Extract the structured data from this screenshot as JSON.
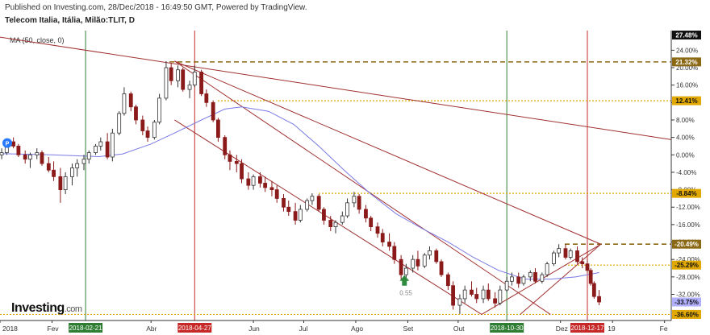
{
  "header": {
    "published_line": "Published on Investing.com, 28/Dec/2018 - 16:49:50 GMT, Powered by TradingView.",
    "instrument": "Telecom Italia, Itália, Milão:TLIT, D"
  },
  "indicator": {
    "label": "MA (50, close, 0)"
  },
  "logo": {
    "text": "Investing",
    "suffix": ".com"
  },
  "colors": {
    "candle_up": "#333333",
    "candle_down": "#8b1a1a",
    "ma": "#7a7ae6",
    "channel": "#a03030",
    "level_gold": "#b8860b",
    "level_dark": "#8b6914",
    "vline_green": "#2e7d32",
    "vline_red": "#c62828",
    "grid_axis": "#333333"
  },
  "chart_data": {
    "type": "candlestick",
    "xlabel": "",
    "ylabel": "",
    "y_axis": {
      "unit": "%",
      "range": [
        -38.0,
        28.5
      ],
      "ticks": [
        "24.00%",
        "20.00%",
        "16.00%",
        "12.00%",
        "8.00%",
        "4.00%",
        "0.00%",
        "-4.00%",
        "-8.00%",
        "-12.00%",
        "-16.00%",
        "-20.00%",
        "-24.00%",
        "-28.00%",
        "-32.00%"
      ],
      "tick_values": [
        24,
        20,
        16,
        12,
        8,
        4,
        0,
        -4,
        -8,
        -12,
        -16,
        -20,
        -24,
        -28,
        -32
      ]
    },
    "x_axis": {
      "range": [
        "2018-01-01",
        "2019-02-05"
      ],
      "labels": [
        {
          "label": "2018",
          "date": "2018-01-01"
        },
        {
          "label": "Fev",
          "date": "2018-02-01"
        },
        {
          "label": "Abr",
          "date": "2018-04-01"
        },
        {
          "label": "Jun",
          "date": "2018-06-01"
        },
        {
          "label": "Jul",
          "date": "2018-07-01"
        },
        {
          "label": "Ago",
          "date": "2018-08-01"
        },
        {
          "label": "Set",
          "date": "2018-09-01"
        },
        {
          "label": "Out",
          "date": "2018-10-01"
        },
        {
          "label": "Dez",
          "date": "2018-12-01"
        },
        {
          "label": "19",
          "date": "2019-01-01"
        },
        {
          "label": "Fe",
          "date": "2019-02-01"
        }
      ]
    },
    "levels": [
      {
        "label": "27.48%",
        "value": 27.48,
        "style": "none",
        "badge": "#111111"
      },
      {
        "label": "21.32%",
        "value": 21.32,
        "style": "dashed",
        "color": "#8b6914",
        "badge": "#8b6914"
      },
      {
        "label": "12.41%",
        "value": 12.41,
        "style": "dotted",
        "color": "#e0a800",
        "badge": "#e0a800"
      },
      {
        "label": "-8.84%",
        "value": -8.84,
        "style": "dotted",
        "color": "#e0a800",
        "badge": "#e0a800"
      },
      {
        "label": "-20.49%",
        "value": -20.49,
        "style": "dashed",
        "color": "#8b6914",
        "badge": "#8b6914"
      },
      {
        "label": "-25.29%",
        "value": -25.29,
        "style": "dotted",
        "color": "#e0a800",
        "badge": "#e0a800"
      },
      {
        "label": "-33.75%",
        "value": -33.75,
        "style": "none",
        "badge": "#b0b0ff"
      },
      {
        "label": "-36.60%",
        "value": -36.6,
        "style": "dotted",
        "color": "#e0a800",
        "badge": "#e0a800"
      }
    ],
    "vertical_markers": [
      {
        "label": "2018-02-21",
        "date": "2018-02-21",
        "color": "#2e7d32"
      },
      {
        "label": "2018-04-27",
        "date": "2018-04-27",
        "color": "#c62828"
      },
      {
        "label": "2018-10-30",
        "date": "2018-10-30",
        "color": "#2e7d32"
      },
      {
        "label": "2018-12-17",
        "date": "2018-12-17",
        "color": "#c62828"
      }
    ],
    "annotations": [
      {
        "label": "0.55",
        "date": "2018-08-30",
        "value": -30.0
      }
    ],
    "trendlines": [
      {
        "from": [
          "2018-01-01",
          27.0
        ],
        "to": [
          "2019-02-05",
          3.5
        ]
      },
      {
        "from": [
          "2018-04-15",
          21.5
        ],
        "to": [
          "2018-12-25",
          -20.5
        ]
      },
      {
        "from": [
          "2018-04-15",
          21.5
        ],
        "to": [
          "2018-11-25",
          -36.6
        ]
      },
      {
        "from": [
          "2018-04-15",
          8.0
        ],
        "to": [
          "2018-10-15",
          -36.6
        ]
      },
      {
        "from": [
          "2018-10-15",
          -36.6
        ],
        "to": [
          "2018-12-25",
          -20.5
        ]
      },
      {
        "from": [
          "2018-11-07",
          -36.6
        ],
        "to": [
          "2018-12-25",
          -20.5
        ]
      }
    ],
    "candles": [
      {
        "date": "2018-01-02",
        "o": 0.0,
        "h": 1.5,
        "l": -1.0,
        "c": 0.5
      },
      {
        "date": "2018-01-05",
        "o": 0.5,
        "h": 3.5,
        "l": 0.0,
        "c": 3.0
      },
      {
        "date": "2018-01-09",
        "o": 3.0,
        "h": 4.0,
        "l": 1.5,
        "c": 2.0
      },
      {
        "date": "2018-01-12",
        "o": 2.0,
        "h": 2.5,
        "l": -0.5,
        "c": 0.0
      },
      {
        "date": "2018-01-16",
        "o": 0.0,
        "h": 1.0,
        "l": -2.0,
        "c": -1.0
      },
      {
        "date": "2018-01-19",
        "o": -1.0,
        "h": 0.5,
        "l": -3.0,
        "c": 0.0
      },
      {
        "date": "2018-01-23",
        "o": 0.0,
        "h": 1.5,
        "l": -1.0,
        "c": 0.5
      },
      {
        "date": "2018-01-26",
        "o": 0.5,
        "h": 1.0,
        "l": -2.5,
        "c": -2.0
      },
      {
        "date": "2018-01-30",
        "o": -2.0,
        "h": -0.5,
        "l": -4.0,
        "c": -3.5
      },
      {
        "date": "2018-02-02",
        "o": -3.5,
        "h": -1.5,
        "l": -6.0,
        "c": -5.0
      },
      {
        "date": "2018-02-06",
        "o": -5.0,
        "h": -3.0,
        "l": -11.0,
        "c": -8.0
      },
      {
        "date": "2018-02-09",
        "o": -8.0,
        "h": -4.0,
        "l": -9.0,
        "c": -5.0
      },
      {
        "date": "2018-02-13",
        "o": -5.0,
        "h": -2.0,
        "l": -7.0,
        "c": -3.0
      },
      {
        "date": "2018-02-16",
        "o": -3.0,
        "h": -1.0,
        "l": -5.0,
        "c": -2.0
      },
      {
        "date": "2018-02-20",
        "o": -2.0,
        "h": 0.0,
        "l": -3.5,
        "c": -1.0
      },
      {
        "date": "2018-02-23",
        "o": -1.0,
        "h": 1.0,
        "l": -2.0,
        "c": 0.5
      },
      {
        "date": "2018-02-27",
        "o": 0.5,
        "h": 2.5,
        "l": 0.0,
        "c": 2.0
      },
      {
        "date": "2018-03-02",
        "o": 2.0,
        "h": 4.0,
        "l": 1.0,
        "c": 3.0
      },
      {
        "date": "2018-03-06",
        "o": 3.0,
        "h": 5.0,
        "l": -1.0,
        "c": -0.5
      },
      {
        "date": "2018-03-09",
        "o": -0.5,
        "h": 6.0,
        "l": -1.5,
        "c": 5.0
      },
      {
        "date": "2018-03-13",
        "o": 5.0,
        "h": 10.0,
        "l": 4.5,
        "c": 9.5
      },
      {
        "date": "2018-03-16",
        "o": 9.5,
        "h": 15.5,
        "l": 9.0,
        "c": 14.0
      },
      {
        "date": "2018-03-20",
        "o": 14.0,
        "h": 14.5,
        "l": 10.0,
        "c": 11.0
      },
      {
        "date": "2018-03-23",
        "o": 11.0,
        "h": 11.5,
        "l": 7.0,
        "c": 8.0
      },
      {
        "date": "2018-03-27",
        "o": 8.0,
        "h": 9.0,
        "l": 4.5,
        "c": 5.5
      },
      {
        "date": "2018-03-30",
        "o": 5.5,
        "h": 6.5,
        "l": 3.0,
        "c": 4.0
      },
      {
        "date": "2018-04-03",
        "o": 4.0,
        "h": 8.0,
        "l": 3.5,
        "c": 7.5
      },
      {
        "date": "2018-04-06",
        "o": 7.5,
        "h": 14.0,
        "l": 7.0,
        "c": 13.0
      },
      {
        "date": "2018-04-10",
        "o": 13.0,
        "h": 21.5,
        "l": 12.5,
        "c": 20.0
      },
      {
        "date": "2018-04-13",
        "o": 20.0,
        "h": 21.0,
        "l": 16.0,
        "c": 17.0
      },
      {
        "date": "2018-04-17",
        "o": 17.0,
        "h": 20.5,
        "l": 15.5,
        "c": 19.5
      },
      {
        "date": "2018-04-20",
        "o": 19.5,
        "h": 20.0,
        "l": 14.5,
        "c": 15.0
      },
      {
        "date": "2018-04-24",
        "o": 15.0,
        "h": 17.0,
        "l": 13.0,
        "c": 16.0
      },
      {
        "date": "2018-04-27",
        "o": 16.0,
        "h": 20.5,
        "l": 15.5,
        "c": 19.0
      },
      {
        "date": "2018-05-01",
        "o": 19.0,
        "h": 19.5,
        "l": 13.5,
        "c": 14.0
      },
      {
        "date": "2018-05-04",
        "o": 14.0,
        "h": 15.0,
        "l": 11.0,
        "c": 12.0
      },
      {
        "date": "2018-05-08",
        "o": 12.0,
        "h": 12.5,
        "l": 7.5,
        "c": 8.0
      },
      {
        "date": "2018-05-11",
        "o": 8.0,
        "h": 8.5,
        "l": 3.0,
        "c": 4.0
      },
      {
        "date": "2018-05-15",
        "o": 4.0,
        "h": 4.5,
        "l": -1.0,
        "c": 0.0
      },
      {
        "date": "2018-05-18",
        "o": 0.0,
        "h": 1.0,
        "l": -3.5,
        "c": -1.5
      },
      {
        "date": "2018-05-22",
        "o": -1.5,
        "h": 0.0,
        "l": -4.0,
        "c": -2.0
      },
      {
        "date": "2018-05-25",
        "o": -2.0,
        "h": -1.0,
        "l": -6.5,
        "c": -5.5
      },
      {
        "date": "2018-05-29",
        "o": -5.5,
        "h": -4.0,
        "l": -8.0,
        "c": -7.0
      },
      {
        "date": "2018-06-01",
        "o": -7.0,
        "h": -4.5,
        "l": -8.0,
        "c": -5.0
      },
      {
        "date": "2018-06-05",
        "o": -5.0,
        "h": -4.0,
        "l": -7.5,
        "c": -6.5
      },
      {
        "date": "2018-06-08",
        "o": -6.5,
        "h": -5.0,
        "l": -8.5,
        "c": -7.5
      },
      {
        "date": "2018-06-12",
        "o": -7.5,
        "h": -6.0,
        "l": -9.5,
        "c": -8.0
      },
      {
        "date": "2018-06-15",
        "o": -8.0,
        "h": -7.0,
        "l": -11.0,
        "c": -10.0
      },
      {
        "date": "2018-06-19",
        "o": -10.0,
        "h": -9.0,
        "l": -13.0,
        "c": -12.0
      },
      {
        "date": "2018-06-22",
        "o": -12.0,
        "h": -10.5,
        "l": -14.0,
        "c": -13.0
      },
      {
        "date": "2018-06-26",
        "o": -13.0,
        "h": -11.0,
        "l": -16.0,
        "c": -15.0
      },
      {
        "date": "2018-06-29",
        "o": -15.0,
        "h": -11.5,
        "l": -15.5,
        "c": -12.5
      },
      {
        "date": "2018-07-03",
        "o": -12.5,
        "h": -10.0,
        "l": -13.0,
        "c": -10.5
      },
      {
        "date": "2018-07-06",
        "o": -10.5,
        "h": -8.8,
        "l": -11.5,
        "c": -9.5
      },
      {
        "date": "2018-07-10",
        "o": -9.5,
        "h": -9.0,
        "l": -13.0,
        "c": -12.5
      },
      {
        "date": "2018-07-13",
        "o": -12.5,
        "h": -12.0,
        "l": -16.0,
        "c": -15.0
      },
      {
        "date": "2018-07-17",
        "o": -15.0,
        "h": -14.0,
        "l": -17.5,
        "c": -16.5
      },
      {
        "date": "2018-07-20",
        "o": -16.5,
        "h": -15.0,
        "l": -18.0,
        "c": -15.5
      },
      {
        "date": "2018-07-24",
        "o": -15.5,
        "h": -13.0,
        "l": -16.0,
        "c": -14.0
      },
      {
        "date": "2018-07-27",
        "o": -14.0,
        "h": -10.0,
        "l": -14.5,
        "c": -11.0
      },
      {
        "date": "2018-07-31",
        "o": -11.0,
        "h": -8.5,
        "l": -12.0,
        "c": -9.5
      },
      {
        "date": "2018-08-03",
        "o": -9.5,
        "h": -9.0,
        "l": -13.5,
        "c": -12.5
      },
      {
        "date": "2018-08-07",
        "o": -12.5,
        "h": -11.5,
        "l": -15.5,
        "c": -14.5
      },
      {
        "date": "2018-08-10",
        "o": -14.5,
        "h": -14.0,
        "l": -17.5,
        "c": -16.5
      },
      {
        "date": "2018-08-14",
        "o": -16.5,
        "h": -15.5,
        "l": -19.0,
        "c": -18.0
      },
      {
        "date": "2018-08-17",
        "o": -18.0,
        "h": -17.0,
        "l": -21.0,
        "c": -20.0
      },
      {
        "date": "2018-08-21",
        "o": -20.0,
        "h": -18.0,
        "l": -22.0,
        "c": -21.0
      },
      {
        "date": "2018-08-24",
        "o": -21.0,
        "h": -20.0,
        "l": -25.0,
        "c": -24.0
      },
      {
        "date": "2018-08-28",
        "o": -24.0,
        "h": -23.0,
        "l": -28.5,
        "c": -27.5
      },
      {
        "date": "2018-08-31",
        "o": -27.5,
        "h": -25.0,
        "l": -29.5,
        "c": -26.0
      },
      {
        "date": "2018-09-04",
        "o": -26.0,
        "h": -23.0,
        "l": -27.0,
        "c": -24.0
      },
      {
        "date": "2018-09-07",
        "o": -24.0,
        "h": -22.0,
        "l": -26.5,
        "c": -25.5
      },
      {
        "date": "2018-09-11",
        "o": -25.5,
        "h": -22.5,
        "l": -26.0,
        "c": -23.0
      },
      {
        "date": "2018-09-14",
        "o": -23.0,
        "h": -21.0,
        "l": -24.0,
        "c": -22.0
      },
      {
        "date": "2018-09-18",
        "o": -22.0,
        "h": -21.5,
        "l": -25.0,
        "c": -24.5
      },
      {
        "date": "2018-09-21",
        "o": -24.5,
        "h": -24.0,
        "l": -28.0,
        "c": -27.5
      },
      {
        "date": "2018-09-25",
        "o": -27.5,
        "h": -27.0,
        "l": -31.0,
        "c": -30.0
      },
      {
        "date": "2018-09-28",
        "o": -30.0,
        "h": -29.0,
        "l": -35.5,
        "c": -34.5
      },
      {
        "date": "2018-10-02",
        "o": -34.5,
        "h": -32.0,
        "l": -36.5,
        "c": -33.0
      },
      {
        "date": "2018-10-05",
        "o": -33.0,
        "h": -30.0,
        "l": -34.0,
        "c": -31.0
      },
      {
        "date": "2018-10-09",
        "o": -31.0,
        "h": -29.0,
        "l": -32.5,
        "c": -32.0
      },
      {
        "date": "2018-10-12",
        "o": -32.0,
        "h": -30.5,
        "l": -34.0,
        "c": -33.0
      },
      {
        "date": "2018-10-16",
        "o": -33.0,
        "h": -30.0,
        "l": -34.0,
        "c": -31.0
      },
      {
        "date": "2018-10-19",
        "o": -31.0,
        "h": -29.5,
        "l": -33.5,
        "c": -33.0
      },
      {
        "date": "2018-10-23",
        "o": -33.0,
        "h": -31.5,
        "l": -35.0,
        "c": -34.0
      },
      {
        "date": "2018-10-26",
        "o": -34.0,
        "h": -30.0,
        "l": -34.5,
        "c": -31.0
      },
      {
        "date": "2018-10-30",
        "o": -31.0,
        "h": -28.0,
        "l": -31.5,
        "c": -29.0
      },
      {
        "date": "2018-11-02",
        "o": -29.0,
        "h": -27.0,
        "l": -30.0,
        "c": -28.0
      },
      {
        "date": "2018-11-06",
        "o": -28.0,
        "h": -27.0,
        "l": -30.5,
        "c": -29.5
      },
      {
        "date": "2018-11-09",
        "o": -29.5,
        "h": -27.5,
        "l": -30.0,
        "c": -28.0
      },
      {
        "date": "2018-11-13",
        "o": -28.0,
        "h": -26.5,
        "l": -29.0,
        "c": -27.0
      },
      {
        "date": "2018-11-16",
        "o": -27.0,
        "h": -26.0,
        "l": -29.5,
        "c": -29.0
      },
      {
        "date": "2018-11-20",
        "o": -29.0,
        "h": -27.0,
        "l": -29.5,
        "c": -27.5
      },
      {
        "date": "2018-11-23",
        "o": -27.5,
        "h": -24.5,
        "l": -28.0,
        "c": -25.0
      },
      {
        "date": "2018-11-27",
        "o": -25.0,
        "h": -22.0,
        "l": -25.5,
        "c": -22.5
      },
      {
        "date": "2018-11-30",
        "o": -22.5,
        "h": -20.5,
        "l": -23.5,
        "c": -21.5
      },
      {
        "date": "2018-12-04",
        "o": -21.5,
        "h": -20.5,
        "l": -24.0,
        "c": -23.5
      },
      {
        "date": "2018-12-07",
        "o": -23.5,
        "h": -21.5,
        "l": -24.0,
        "c": -22.0
      },
      {
        "date": "2018-12-11",
        "o": -22.0,
        "h": -21.0,
        "l": -25.0,
        "c": -24.5
      },
      {
        "date": "2018-12-14",
        "o": -24.5,
        "h": -23.5,
        "l": -26.0,
        "c": -25.0
      },
      {
        "date": "2018-12-17",
        "o": -25.0,
        "h": -24.0,
        "l": -27.0,
        "c": -26.5
      },
      {
        "date": "2018-12-19",
        "o": -26.5,
        "h": -26.0,
        "l": -30.0,
        "c": -29.5
      },
      {
        "date": "2018-12-21",
        "o": -29.5,
        "h": -29.0,
        "l": -33.0,
        "c": -32.5
      },
      {
        "date": "2018-12-24",
        "o": -32.5,
        "h": -31.0,
        "l": -34.5,
        "c": -33.75
      }
    ],
    "ma_series": [
      {
        "date": "2018-01-01",
        "v": 0.3
      },
      {
        "date": "2018-02-01",
        "v": 0.0
      },
      {
        "date": "2018-03-01",
        "v": -0.4
      },
      {
        "date": "2018-03-15",
        "v": 0.2
      },
      {
        "date": "2018-04-01",
        "v": 2.5
      },
      {
        "date": "2018-04-15",
        "v": 5.0
      },
      {
        "date": "2018-05-01",
        "v": 8.0
      },
      {
        "date": "2018-05-15",
        "v": 10.5
      },
      {
        "date": "2018-05-25",
        "v": 11.0
      },
      {
        "date": "2018-06-10",
        "v": 10.0
      },
      {
        "date": "2018-06-25",
        "v": 7.0
      },
      {
        "date": "2018-07-10",
        "v": 2.0
      },
      {
        "date": "2018-07-25",
        "v": -3.5
      },
      {
        "date": "2018-08-10",
        "v": -9.0
      },
      {
        "date": "2018-08-25",
        "v": -13.5
      },
      {
        "date": "2018-09-10",
        "v": -17.0
      },
      {
        "date": "2018-09-25",
        "v": -20.0
      },
      {
        "date": "2018-10-10",
        "v": -23.5
      },
      {
        "date": "2018-10-25",
        "v": -26.5
      },
      {
        "date": "2018-11-10",
        "v": -28.5
      },
      {
        "date": "2018-11-25",
        "v": -28.5
      },
      {
        "date": "2018-12-10",
        "v": -28.0
      },
      {
        "date": "2018-12-24",
        "v": -27.0
      }
    ]
  }
}
